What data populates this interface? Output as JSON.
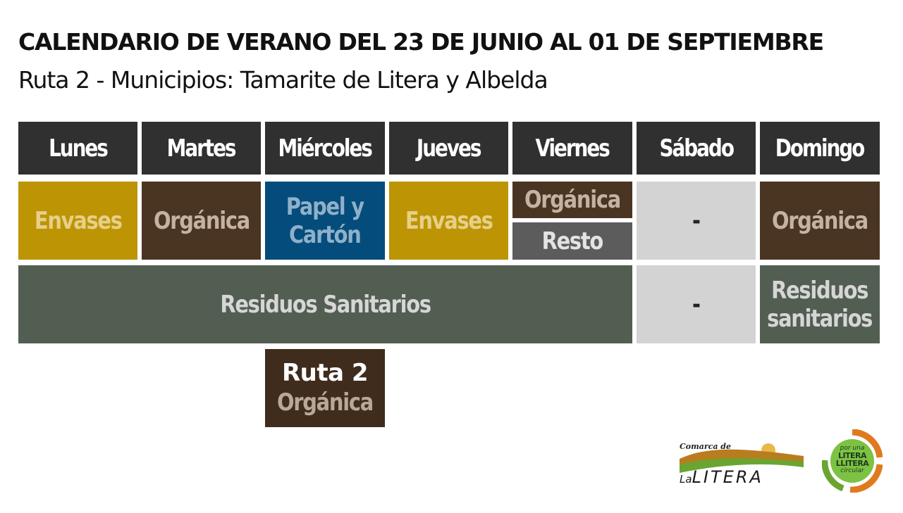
{
  "header": {
    "title": "CALENDARIO DE VERANO DEL 23 DE JUNIO AL 01 DE SEPTIEMBRE",
    "subtitle": "Ruta 2 - Municipios: Tamarite de Litera y Albelda"
  },
  "days": [
    "Lunes",
    "Martes",
    "Miércoles",
    "Jueves",
    "Viernes",
    "Sábado",
    "Domingo"
  ],
  "row1": {
    "lunes": "Envases",
    "martes": "Orgánica",
    "miercoles_line1": "Papel y",
    "miercoles_line2": "Cartón",
    "jueves": "Envases",
    "viernes_top": "Orgánica",
    "viernes_bottom": "Resto",
    "sabado": "-",
    "domingo": "Orgánica"
  },
  "row2": {
    "weekdays": "Residuos Sanitarios",
    "sabado": "-",
    "domingo_line1": "Residuos",
    "domingo_line2": "sanitarios"
  },
  "route_box": {
    "title": "Ruta 2",
    "subtitle": "Orgánica"
  },
  "logos": {
    "comarca_small": "Comarca de",
    "comarca_la": "La",
    "comarca_big": "LITERA",
    "circular_top": "por una",
    "circular_line1": "LITERA",
    "circular_line2": "LLITERA",
    "circular_bottom": "circular"
  },
  "colors": {
    "header_bg": "#303030",
    "envases": "#bd9403",
    "organica": "#4a3523",
    "papel": "#034c7b",
    "resto": "#5c5c5c",
    "empty": "#d3d3d3",
    "sanitarios": "#535e53"
  }
}
